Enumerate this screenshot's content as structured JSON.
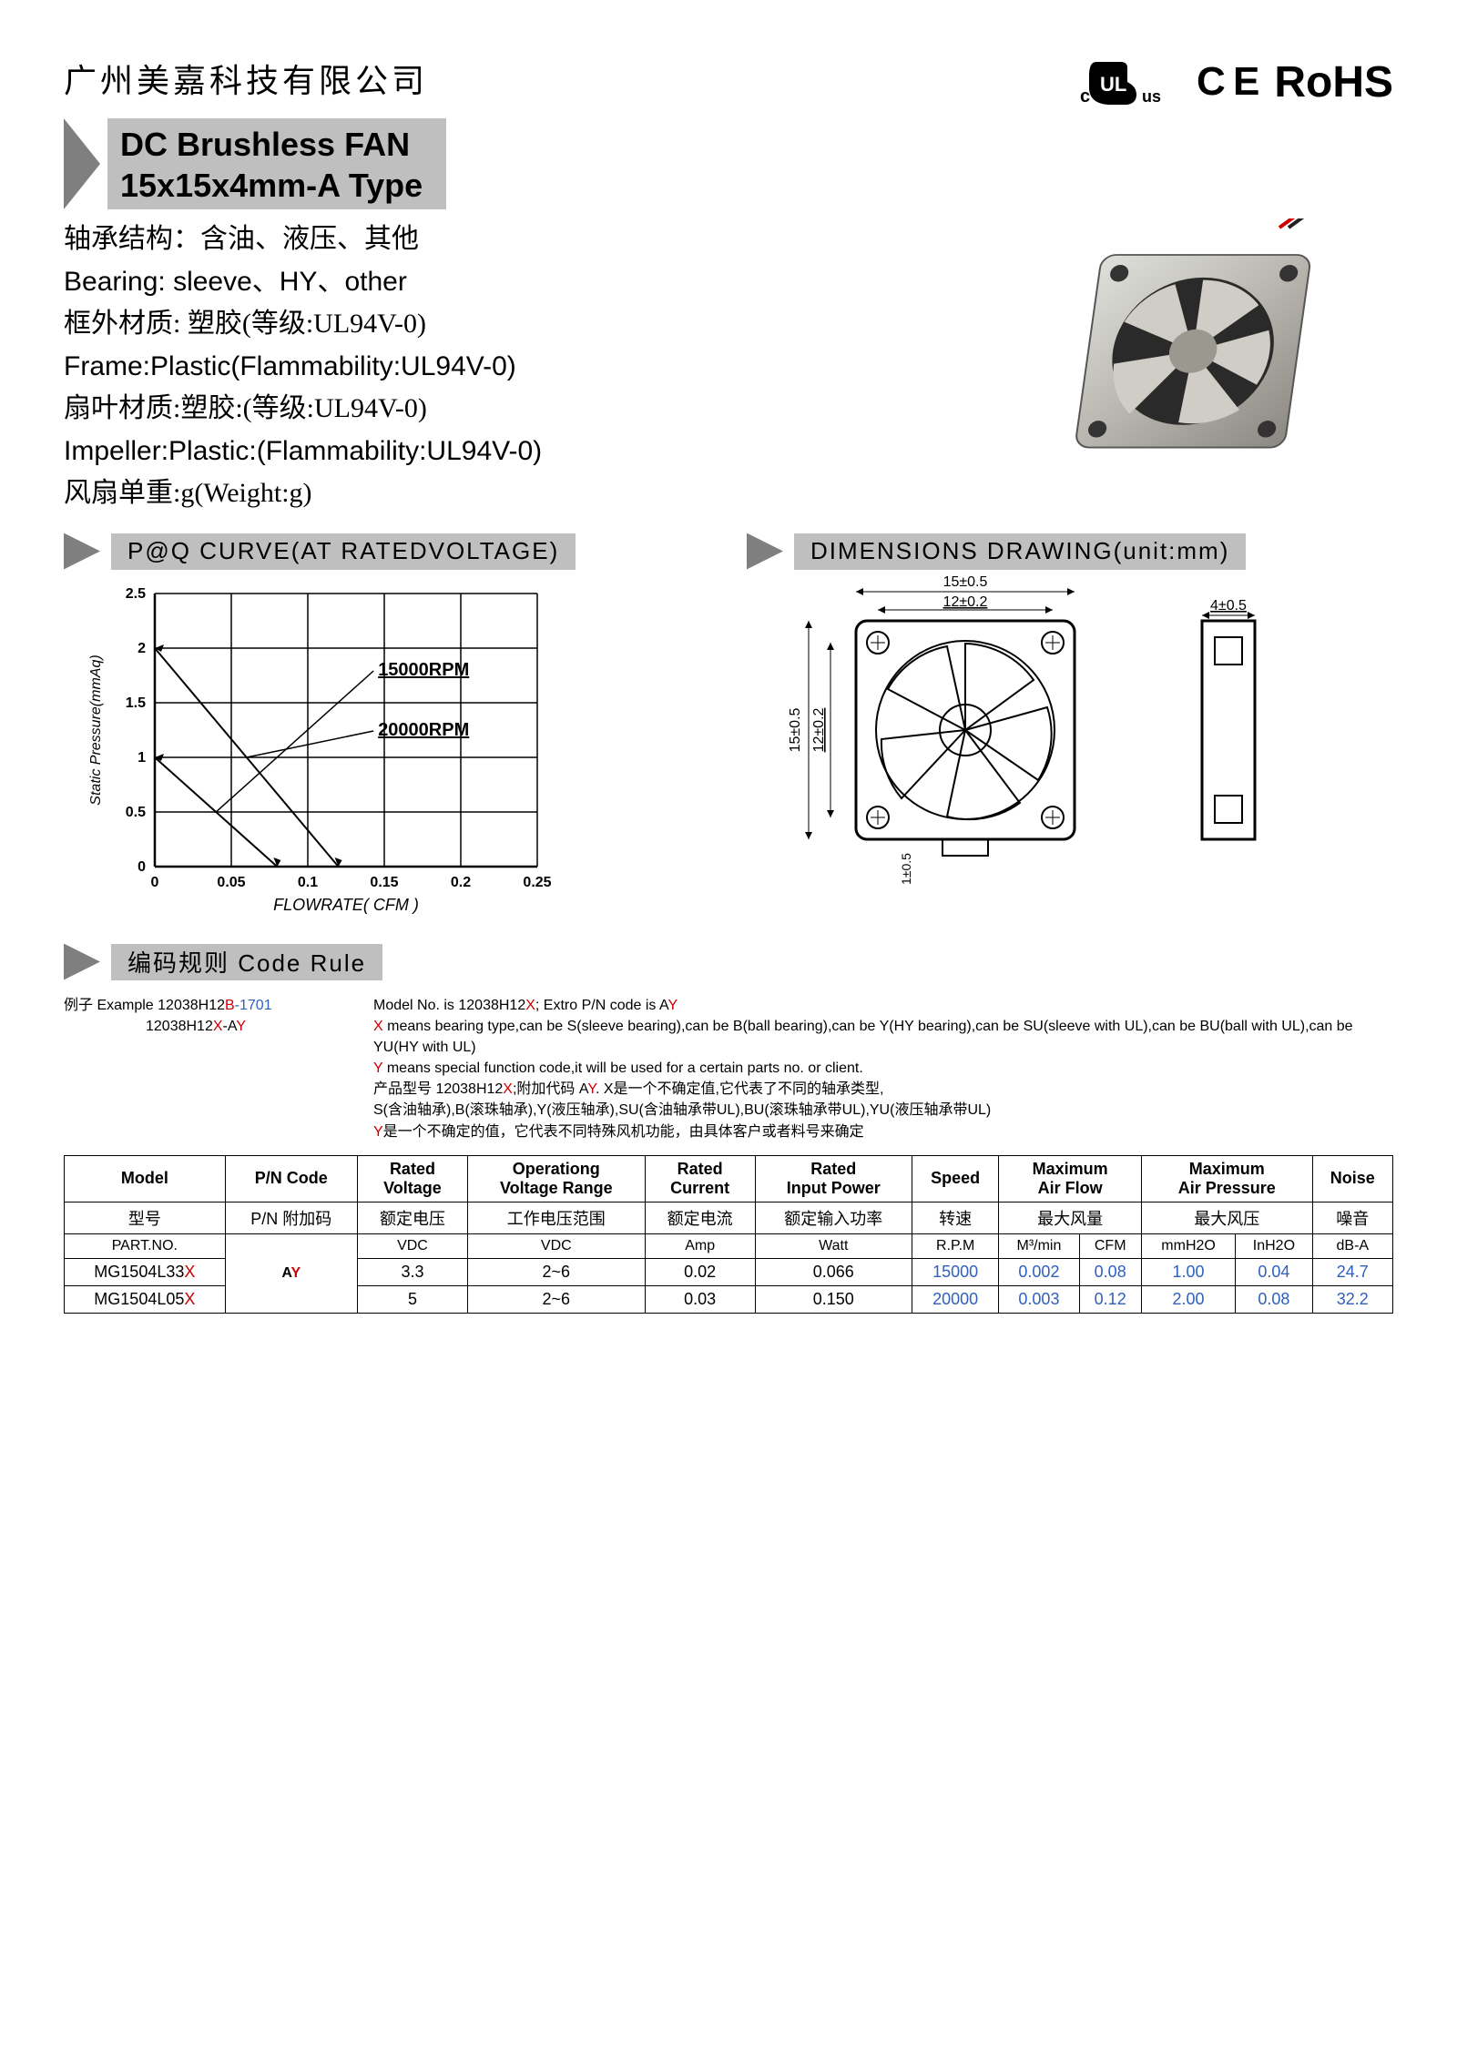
{
  "company": "广州美嘉科技有限公司",
  "certs": {
    "rohs": "RoHS",
    "ce": "C E"
  },
  "title": {
    "line1": "DC Brushless FAN",
    "line2": "15x15x4mm-A Type"
  },
  "specs": [
    "轴承结构：含油、液压、其他",
    "Bearing: sleeve、HY、other",
    "框外材质: 塑胶(等级:UL94V-0)",
    "Frame:Plastic(Flammability:UL94V-0)",
    "扇叶材质:塑胶:(等级:UL94V-0)",
    "Impeller:Plastic:(Flammability:UL94V-0)",
    "风扇单重:g(Weight:g)"
  ],
  "section": {
    "pq": "P@Q CURVE(AT RATEDVOLTAGE)",
    "dim": "DIMENSIONS DRAWING(unit:mm)",
    "code": "编码规则 Code Rule"
  },
  "pq_chart": {
    "x_label": "FLOWRATE( CFM )",
    "y_label": "Static Pressure(mmAq)",
    "x_ticks": [
      "0",
      "0.05",
      "0.1",
      "0.15",
      "0.2",
      "0.25"
    ],
    "y_ticks": [
      "0",
      "0.5",
      "1",
      "1.5",
      "2",
      "2.5"
    ],
    "series": [
      {
        "label": "15000RPM",
        "p0": 1.0,
        "q0": 0.08
      },
      {
        "label": "20000RPM",
        "p0": 2.0,
        "q0": 0.12
      }
    ],
    "axis_color": "#000000",
    "bg": "#ffffff"
  },
  "dim": {
    "outer": "15±0.5",
    "inner": "12±0.2",
    "thick": "4±0.5",
    "lead": "1±0.5"
  },
  "code_rule": {
    "example_label": "例子 Example ",
    "example1_a": "12038H12",
    "example1_b": "B",
    "example1_c": "-1701",
    "example2_a": "12038H12",
    "example2_b": "X",
    "example2_c": "-A",
    "example2_d": "Y",
    "r1_a": "Model No. is 12038H12",
    "r1_b": "X",
    "r1_c": "; Extro P/N code  is  A",
    "r1_d": "Y",
    "r2_a": "X",
    "r2_b": " means bearing type,can be S(sleeve bearing),can be B(ball bearing),can be Y(HY bearing),can be SU(sleeve with UL),can be BU(ball with UL),can be YU(HY with UL)",
    "r3_a": "Y",
    "r3_b": " means special function code,it will be used for a certain parts no. or client.",
    "r4_a": "产品型号 12038H12",
    "r4_b": "X",
    "r4_c": ";附加代码 A",
    "r4_d": "Y",
    "r4_e": ". X是一个不确定值,它代表了不同的轴承类型,",
    "r5": "S(含油轴承),B(滚珠轴承),Y(液压轴承),SU(含油轴承带UL),BU(滚珠轴承带UL),YU(液压轴承带UL)",
    "r6_a": "Y",
    "r6_b": "是一个不确定的值，它代表不同特殊风机功能，由具体客户或者料号来确定"
  },
  "table": {
    "headers_en": [
      "Model",
      "P/N Code",
      "Rated Voltage",
      "Operationg Voltage Range",
      "Rated Current",
      "Rated Input Power",
      "Speed",
      "Maximum Air Flow",
      "Maximum Air Pressure",
      "Noise"
    ],
    "headers_cn": [
      "型号",
      "P/N 附加码",
      "额定电压",
      "工作电压范围",
      "额定电流",
      "额定输入功率",
      "转速",
      "最大风量",
      "最大风压",
      "噪音"
    ],
    "units_row": [
      "PART.NO.",
      "",
      "VDC",
      "VDC",
      "Amp",
      "Watt",
      "R.P.M",
      "M³/min",
      "CFM",
      "mmH2O",
      "InH2O",
      "dB-A"
    ],
    "pn_code": "AY",
    "rows": [
      {
        "model_a": "MG1504L33",
        "model_x": "X",
        "vdc": "3.3",
        "range": "2~6",
        "amp": "0.02",
        "watt": "0.066",
        "rpm": "15000",
        "m3": "0.002",
        "cfm": "0.08",
        "mmh": "1.00",
        "inh": "0.04",
        "db": "24.7"
      },
      {
        "model_a": "MG1504L05",
        "model_x": "X",
        "vdc": "5",
        "range": "2~6",
        "amp": "0.03",
        "watt": "0.150",
        "rpm": "20000",
        "m3": "0.003",
        "cfm": "0.12",
        "mmh": "2.00",
        "inh": "0.08",
        "db": "32.2"
      }
    ]
  }
}
